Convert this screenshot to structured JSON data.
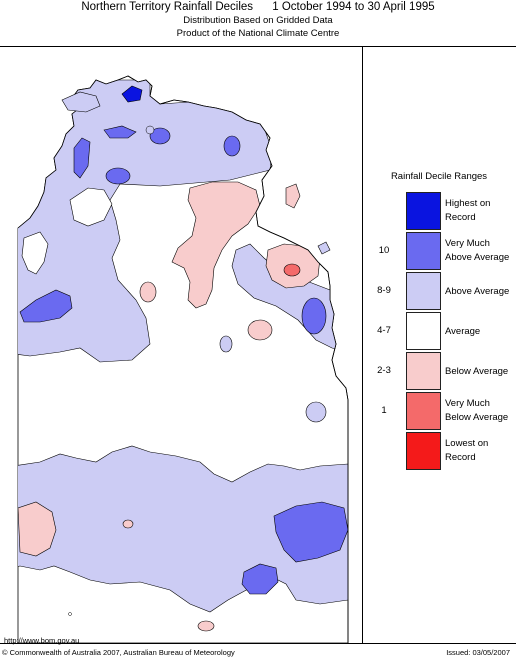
{
  "header": {
    "title": "Northern Territory Rainfall Deciles",
    "period": "1 October 1994 to 30 April 1995",
    "subtitle1": "Distribution Based on Gridded Data",
    "subtitle2": "Product of the National Climate Centre"
  },
  "legend": {
    "title": "Rainfall Decile Ranges",
    "entries": [
      {
        "code": "",
        "label1": "Highest on",
        "label2": "Record",
        "color": "#0a14e0"
      },
      {
        "code": "10",
        "label1": "Very Much",
        "label2": "Above Average",
        "color": "#6a6af0"
      },
      {
        "code": "8-9",
        "label1": "Above Average",
        "label2": "",
        "color": "#ccccf4"
      },
      {
        "code": "4-7",
        "label1": "Average",
        "label2": "",
        "color": "#ffffff"
      },
      {
        "code": "2-3",
        "label1": "Below Average",
        "label2": "",
        "color": "#f8cccc"
      },
      {
        "code": "1",
        "label1": "Very Much",
        "label2": "Below Average",
        "color": "#f46a6a"
      },
      {
        "code": "",
        "label1": "Lowest on",
        "label2": "Record",
        "color": "#f41a1a"
      }
    ]
  },
  "map": {
    "colors": {
      "above": "#ccccf4",
      "very_much_above": "#6a6af0",
      "highest": "#0a14e0",
      "average": "#ffffff",
      "below": "#f8cccc",
      "very_much_below": "#f46a6a",
      "outline": "#000000"
    }
  },
  "footer": {
    "url": "http://www.bom.gov.au",
    "copyright": "© Commonwealth of Australia 2007, Australian Bureau of Meteorology",
    "issued": "Issued: 03/05/2007"
  }
}
